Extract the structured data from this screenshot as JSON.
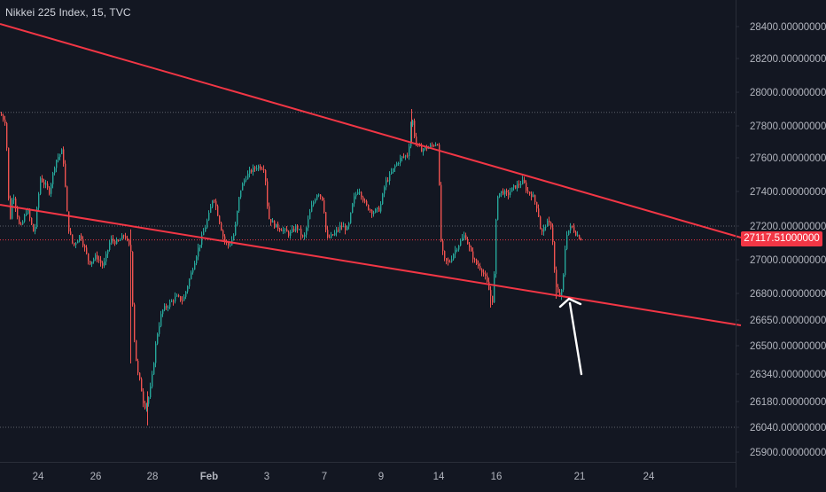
{
  "header": {
    "symbol_title": "Nikkei 225 Index, 15, TVC"
  },
  "colors": {
    "background": "#131722",
    "axis_text": "#b2b5be",
    "up_candle": "#26a69a",
    "down_candle": "#ef5350",
    "trendline": "#f23645",
    "price_badge": "#f23645",
    "arrow": "#ffffff",
    "dotted_level": "#5d606b"
  },
  "chart_data": {
    "type": "candlestick",
    "title": "Nikkei 225 Index, 15, TVC",
    "xlabel": "",
    "ylabel": "",
    "x_ticks": [
      "24",
      "26",
      "28",
      "Feb",
      "3",
      "7",
      "9",
      "14",
      "16",
      "21",
      "24"
    ],
    "y_ticks": [
      "28400.00000000",
      "28200.00000000",
      "28000.00000000",
      "27800.00000000",
      "27600.00000000",
      "27400.00000000",
      "27200.00000000",
      "27000.00000000",
      "26800.00000000",
      "26650.00000000",
      "26500.00000000",
      "26340.00000000",
      "26180.00000000",
      "26040.00000000",
      "25900.00000000"
    ],
    "ylim": [
      25900,
      28400
    ],
    "last_price": "27117.51000000",
    "dotted_levels": [
      27880,
      27200,
      27117.51,
      26040
    ],
    "trendlines": [
      {
        "color": "red",
        "points": [
          [
            "left-edge",
            28450
          ],
          [
            "right-edge",
            27130
          ]
        ]
      },
      {
        "color": "red",
        "points": [
          [
            "left-edge",
            27310
          ],
          [
            "right-edge",
            26640
          ]
        ]
      }
    ],
    "annotation": {
      "type": "arrow",
      "color": "white",
      "points_to": "lower trendline near 21 Feb"
    },
    "price_path": [
      [
        0,
        27870
      ],
      [
        6,
        27820
      ],
      [
        10,
        27200
      ],
      [
        14,
        27400
      ],
      [
        22,
        27180
      ],
      [
        30,
        27300
      ],
      [
        38,
        27150
      ],
      [
        45,
        27480
      ],
      [
        55,
        27400
      ],
      [
        62,
        27580
      ],
      [
        70,
        27650
      ],
      [
        76,
        27200
      ],
      [
        82,
        27080
      ],
      [
        90,
        27150
      ],
      [
        100,
        26980
      ],
      [
        108,
        27020
      ],
      [
        116,
        26960
      ],
      [
        124,
        27120
      ],
      [
        132,
        27100
      ],
      [
        140,
        27150
      ],
      [
        147,
        27050
      ],
      [
        150,
        26600
      ],
      [
        154,
        26360
      ],
      [
        158,
        26280
      ],
      [
        162,
        26150
      ],
      [
        166,
        26180
      ],
      [
        170,
        26280
      ],
      [
        176,
        26550
      ],
      [
        182,
        26700
      ],
      [
        190,
        26740
      ],
      [
        198,
        26780
      ],
      [
        206,
        26760
      ],
      [
        214,
        26900
      ],
      [
        222,
        27050
      ],
      [
        230,
        27180
      ],
      [
        236,
        27280
      ],
      [
        240,
        27380
      ],
      [
        246,
        27250
      ],
      [
        252,
        27120
      ],
      [
        258,
        27080
      ],
      [
        264,
        27160
      ],
      [
        270,
        27400
      ],
      [
        276,
        27480
      ],
      [
        282,
        27520
      ],
      [
        290,
        27550
      ],
      [
        298,
        27540
      ],
      [
        302,
        27250
      ],
      [
        310,
        27200
      ],
      [
        318,
        27180
      ],
      [
        326,
        27150
      ],
      [
        334,
        27200
      ],
      [
        342,
        27120
      ],
      [
        350,
        27300
      ],
      [
        358,
        27400
      ],
      [
        364,
        27350
      ],
      [
        368,
        27120
      ],
      [
        376,
        27150
      ],
      [
        384,
        27200
      ],
      [
        392,
        27180
      ],
      [
        398,
        27350
      ],
      [
        404,
        27420
      ],
      [
        412,
        27320
      ],
      [
        420,
        27280
      ],
      [
        428,
        27300
      ],
      [
        434,
        27450
      ],
      [
        440,
        27500
      ],
      [
        446,
        27560
      ],
      [
        452,
        27600
      ],
      [
        460,
        27620
      ],
      [
        464,
        27870
      ],
      [
        468,
        27700
      ],
      [
        474,
        27650
      ],
      [
        480,
        27660
      ],
      [
        488,
        27680
      ],
      [
        494,
        27700
      ],
      [
        496,
        27150
      ],
      [
        500,
        27000
      ],
      [
        506,
        26980
      ],
      [
        512,
        27050
      ],
      [
        518,
        27100
      ],
      [
        524,
        27150
      ],
      [
        530,
        27050
      ],
      [
        536,
        26980
      ],
      [
        542,
        26950
      ],
      [
        548,
        26880
      ],
      [
        552,
        26800
      ],
      [
        556,
        26750
      ],
      [
        560,
        27380
      ],
      [
        566,
        27400
      ],
      [
        572,
        27380
      ],
      [
        578,
        27420
      ],
      [
        584,
        27440
      ],
      [
        590,
        27460
      ],
      [
        594,
        27400
      ],
      [
        600,
        27380
      ],
      [
        606,
        27300
      ],
      [
        610,
        27150
      ],
      [
        616,
        27220
      ],
      [
        622,
        27200
      ],
      [
        626,
        26850
      ],
      [
        630,
        26780
      ],
      [
        634,
        26820
      ],
      [
        638,
        27150
      ],
      [
        644,
        27200
      ],
      [
        650,
        27150
      ],
      [
        656,
        27120
      ]
    ]
  }
}
